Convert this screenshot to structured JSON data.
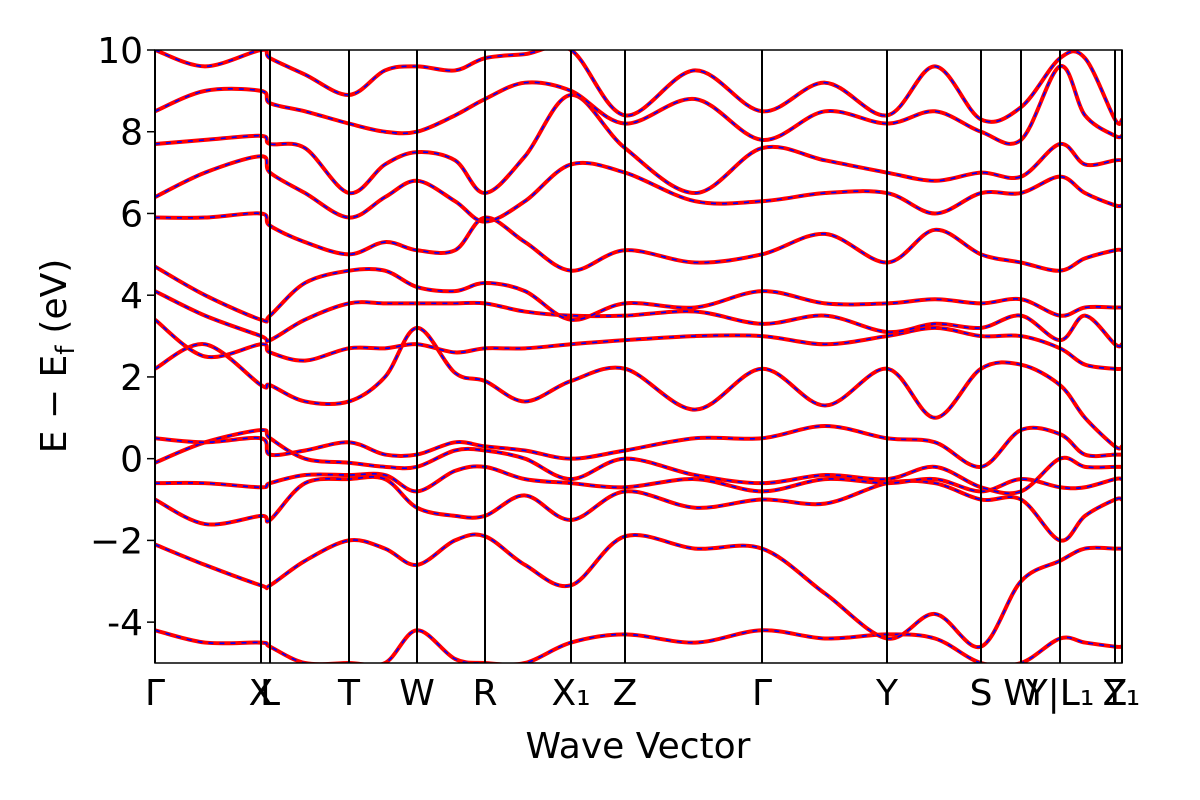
{
  "chart_data": {
    "type": "line",
    "xlabel": "Wave Vector",
    "ylabel": {
      "main": "E − E",
      "sub": "f",
      "unit": "(eV)"
    },
    "xlim": [
      0,
      9.67
    ],
    "ylim": [
      -5,
      10
    ],
    "yticks": [
      -4,
      {
        "value": -2,
        "label": "−2"
      },
      0,
      2,
      4,
      6,
      8,
      10
    ],
    "xticks": [
      {
        "value": 0,
        "label": "Γ"
      },
      {
        "value": 1.06,
        "label": "X"
      },
      {
        "value": 1.15,
        "label": "L"
      },
      {
        "value": 1.94,
        "label": "T"
      },
      {
        "value": 2.62,
        "label": "W"
      },
      {
        "value": 3.3,
        "label": "R"
      },
      {
        "value": 4.16,
        "label": "X₁"
      },
      {
        "value": 4.7,
        "label": "Z"
      },
      {
        "value": 6.07,
        "label": "Γ"
      },
      {
        "value": 7.32,
        "label": "Y"
      },
      {
        "value": 8.26,
        "label": "S"
      },
      {
        "value": 8.66,
        "label": "W"
      },
      {
        "value": 9.05,
        "label": "Y|L₁"
      },
      {
        "value": 9.6,
        "label": "Z"
      },
      {
        "value": 9.67,
        "label": "Y₁"
      }
    ],
    "overlay_color": "#0000ff",
    "x": [
      0,
      0.5,
      1.06,
      1.15,
      1.5,
      1.94,
      2.3,
      2.62,
      3.0,
      3.3,
      3.7,
      4.16,
      4.7,
      5.4,
      6.07,
      6.7,
      7.32,
      7.8,
      8.26,
      8.66,
      9.05,
      9.3,
      9.6,
      9.67
    ],
    "series": [
      {
        "color": "#ff0000",
        "values": [
          -4.2,
          -4.5,
          -4.5,
          -4.6,
          -5,
          -5,
          -5,
          -4.2,
          -4.9,
          -5,
          -5,
          -4.5,
          -4.3,
          -4.5,
          -4.2,
          -4.4,
          -4.3,
          -4.4,
          -5,
          -5,
          -4.4,
          -4.5,
          -4.6,
          -4.6
        ]
      },
      {
        "color": "#ff0000",
        "values": [
          -2.1,
          -2.6,
          -3.1,
          -3.1,
          -2.5,
          -2,
          -2.2,
          -2.6,
          -2,
          -1.9,
          -2.6,
          -3.1,
          -1.9,
          -2.2,
          -2.2,
          -3.3,
          -4.4,
          -3.8,
          -4.6,
          -3,
          -2.5,
          -2.2,
          -2.2,
          -2.2
        ]
      },
      {
        "color": "#ff0000",
        "values": [
          -1,
          -1.6,
          -1.4,
          -1.5,
          -0.6,
          -0.5,
          -0.5,
          -1.2,
          -1.4,
          -1.4,
          -0.9,
          -1.5,
          -0.8,
          -1.2,
          -1,
          -1.1,
          -0.6,
          -0.6,
          -1,
          -1,
          -2,
          -1.4,
          -1,
          -1
        ]
      },
      {
        "color": "#ff0000",
        "values": [
          -0.6,
          -0.6,
          -0.7,
          -0.6,
          -0.4,
          -0.4,
          -0.4,
          -0.8,
          -0.3,
          -0.2,
          -0.5,
          -0.6,
          -0.7,
          -0.5,
          -0.8,
          -0.5,
          -0.6,
          -0.5,
          -0.8,
          -0.5,
          -0.7,
          -0.7,
          -0.5,
          -0.5
        ]
      },
      {
        "color": "#ff0000",
        "values": [
          -0.1,
          0.4,
          0.7,
          0.5,
          0,
          -0.1,
          -0.2,
          -0.2,
          0.2,
          0.2,
          0,
          -0.5,
          0,
          -0.4,
          -0.6,
          -0.4,
          -0.5,
          -0.2,
          -0.7,
          -0.8,
          0,
          -0.2,
          -0.2,
          -0.2
        ]
      },
      {
        "color": "#ff0000",
        "values": [
          0.5,
          0.4,
          0.5,
          0.1,
          0.2,
          0.4,
          0.1,
          0.1,
          0.4,
          0.3,
          0.2,
          0,
          0.2,
          0.5,
          0.5,
          0.8,
          0.5,
          0.4,
          -0.2,
          0.7,
          0.6,
          0.1,
          0.1,
          0.1
        ]
      },
      {
        "color": "#ff0000",
        "values": [
          2.2,
          2.8,
          1.8,
          1.8,
          1.4,
          1.4,
          2,
          3.2,
          2.1,
          1.9,
          1.4,
          1.9,
          2.2,
          1.2,
          2.2,
          1.3,
          2.2,
          1,
          2.2,
          2.3,
          1.8,
          1,
          0.3,
          0.3
        ]
      },
      {
        "color": "#ff0000",
        "values": [
          3.4,
          2.5,
          2.8,
          2.6,
          2.4,
          2.7,
          2.7,
          2.8,
          2.6,
          2.7,
          2.7,
          2.8,
          2.9,
          3,
          3,
          2.8,
          3,
          3.2,
          3,
          3,
          2.7,
          2.3,
          2.2,
          2.2
        ]
      },
      {
        "color": "#ff0000",
        "values": [
          4.1,
          3.5,
          3,
          2.9,
          3.4,
          3.8,
          3.8,
          3.8,
          3.8,
          3.8,
          3.6,
          3.5,
          3.5,
          3.6,
          3.3,
          3.5,
          3.1,
          3.3,
          3.2,
          3.5,
          2.9,
          3.5,
          2.8,
          2.8
        ]
      },
      {
        "color": "#ff0000",
        "values": [
          4.7,
          4,
          3.4,
          3.5,
          4.3,
          4.6,
          4.6,
          4.2,
          4.1,
          4.3,
          4.1,
          3.4,
          3.8,
          3.7,
          4.1,
          3.8,
          3.8,
          3.9,
          3.8,
          3.9,
          3.5,
          3.7,
          3.7,
          3.7
        ]
      },
      {
        "color": "#ff0000",
        "values": [
          5.9,
          5.9,
          6,
          5.7,
          5.3,
          5,
          5.3,
          5.1,
          5.1,
          5.9,
          5.3,
          4.6,
          5.1,
          4.8,
          5,
          5.5,
          4.8,
          5.6,
          5,
          4.8,
          4.6,
          4.9,
          5.1,
          5.1
        ]
      },
      {
        "color": "#ff0000",
        "values": [
          6.4,
          7,
          7.4,
          7,
          6.5,
          5.9,
          6.4,
          6.8,
          6.3,
          5.8,
          6.3,
          7.2,
          7,
          6.3,
          6.3,
          6.5,
          6.5,
          6,
          6.5,
          6.5,
          6.9,
          6.5,
          6.2,
          6.2
        ]
      },
      {
        "color": "#ff0000",
        "values": [
          7.7,
          7.8,
          7.9,
          7.7,
          7.6,
          6.5,
          7.2,
          7.5,
          7.3,
          6.5,
          7.4,
          8.9,
          7.6,
          6.5,
          7.6,
          7.3,
          7,
          6.8,
          7,
          6.9,
          7.7,
          7.2,
          7.3,
          7.3
        ]
      },
      {
        "color": "#ff0000",
        "values": [
          8.5,
          9,
          9,
          8.7,
          8.5,
          8.2,
          8,
          8,
          8.4,
          8.8,
          9.2,
          9,
          8.2,
          8.8,
          7.8,
          8.5,
          8.2,
          8.5,
          8,
          7.8,
          9.6,
          8.4,
          7.9,
          7.9
        ]
      },
      {
        "color": "#ff0000",
        "values": [
          10,
          9.6,
          10,
          9.8,
          9.4,
          8.9,
          9.5,
          9.6,
          9.5,
          9.8,
          9.9,
          10,
          8.4,
          9.5,
          8.5,
          9.2,
          8.4,
          9.6,
          8.3,
          8.6,
          9.8,
          9.8,
          8.3,
          8.3
        ]
      }
    ]
  }
}
